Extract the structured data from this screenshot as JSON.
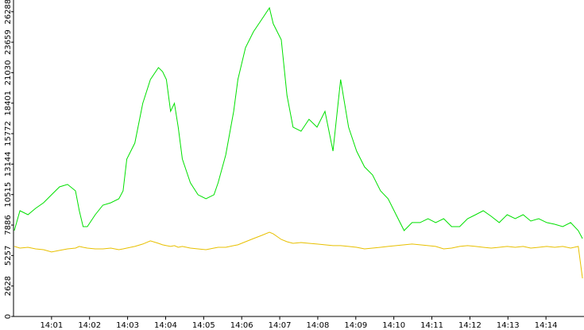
{
  "chart_data": {
    "type": "line",
    "x": [
      840.02,
      840.17,
      840.38,
      840.58,
      840.79,
      841,
      841.21,
      841.42,
      841.63,
      841.73,
      841.83,
      841.94,
      842.15,
      842.35,
      842.56,
      842.77,
      842.88,
      842.98,
      843.19,
      843.4,
      843.6,
      843.81,
      843.92,
      844.02,
      844.13,
      844.23,
      844.33,
      844.44,
      844.65,
      844.85,
      845.06,
      845.27,
      845.38,
      845.58,
      845.79,
      845.9,
      846.1,
      846.31,
      846.52,
      846.73,
      846.83,
      847.04,
      847.19,
      847.35,
      847.56,
      847.77,
      847.98,
      848.19,
      848.4,
      848.6,
      848.81,
      849.02,
      849.23,
      849.44,
      849.65,
      849.85,
      850.06,
      850.27,
      850.48,
      850.69,
      850.9,
      851.1,
      851.31,
      851.52,
      851.73,
      851.94,
      852.15,
      852.35,
      852.56,
      852.77,
      852.98,
      853.19,
      853.4,
      853.6,
      853.81,
      854.02,
      854.23,
      854.44,
      854.65,
      854.85,
      854.96
    ],
    "series": [
      {
        "color": "#00e000",
        "values": [
          7410,
          9120,
          8780,
          9330,
          9810,
          10500,
          11180,
          11390,
          10840,
          9120,
          7750,
          7750,
          8780,
          9600,
          9810,
          10150,
          10840,
          13580,
          14960,
          18390,
          20440,
          21470,
          21130,
          20440,
          17700,
          18390,
          16330,
          13580,
          11530,
          10500,
          10150,
          10500,
          11530,
          13930,
          17700,
          20440,
          23190,
          24560,
          25590,
          26620,
          25250,
          23870,
          19070,
          16330,
          15980,
          17010,
          16330,
          17700,
          14270,
          20440,
          16330,
          14270,
          12900,
          12210,
          10840,
          10150,
          8780,
          7410,
          8100,
          8100,
          8440,
          8100,
          8440,
          7750,
          7750,
          8440,
          8780,
          9120,
          8640,
          8100,
          8780,
          8440,
          8780,
          8230,
          8440,
          8100,
          7960,
          7750,
          8100,
          7410,
          6720
        ]
      },
      {
        "color": "#e8c000",
        "values": [
          6040,
          5900,
          5970,
          5830,
          5760,
          5560,
          5700,
          5830,
          5900,
          6040,
          5970,
          5900,
          5830,
          5830,
          5900,
          5760,
          5830,
          5900,
          6040,
          6250,
          6520,
          6310,
          6180,
          6110,
          6040,
          6110,
          5970,
          6040,
          5900,
          5830,
          5760,
          5900,
          5970,
          5970,
          6110,
          6180,
          6450,
          6720,
          6990,
          7270,
          7130,
          6650,
          6450,
          6310,
          6380,
          6310,
          6250,
          6180,
          6110,
          6110,
          6040,
          5970,
          5830,
          5900,
          5970,
          6040,
          6110,
          6180,
          6250,
          6180,
          6110,
          6040,
          5830,
          5900,
          6040,
          6110,
          6040,
          5970,
          5900,
          5970,
          6040,
          5970,
          6040,
          5900,
          5970,
          6040,
          5970,
          6040,
          5900,
          6040,
          3290
        ]
      }
    ],
    "xlim": [
      840,
      855
    ],
    "xticks": [
      {
        "value": 841,
        "label": "14:01"
      },
      {
        "value": 842,
        "label": "14:02"
      },
      {
        "value": 843,
        "label": "14:03"
      },
      {
        "value": 844,
        "label": "14:04"
      },
      {
        "value": 845,
        "label": "14:05"
      },
      {
        "value": 846,
        "label": "14:06"
      },
      {
        "value": 847,
        "label": "14:07"
      },
      {
        "value": 848,
        "label": "14:08"
      },
      {
        "value": 849,
        "label": "14:09"
      },
      {
        "value": 850,
        "label": "14:10"
      },
      {
        "value": 851,
        "label": "14:11"
      },
      {
        "value": 852,
        "label": "14:12"
      },
      {
        "value": 853,
        "label": "14:13"
      },
      {
        "value": 854,
        "label": "14:14"
      }
    ],
    "ylim": [
      0,
      27300
    ],
    "yticks": [
      0,
      2628,
      5257,
      7886,
      10515,
      13144,
      15772,
      18401,
      21030,
      23659,
      26288
    ]
  }
}
